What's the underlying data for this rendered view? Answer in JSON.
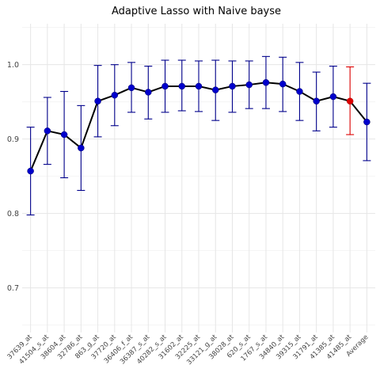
{
  "chart_data": {
    "type": "line",
    "title": "Adaptive Lasso with Naive bayse",
    "xlabel": "",
    "ylabel": "",
    "ylim": [
      0.64,
      1.055
    ],
    "yticks": [
      0.7,
      0.8,
      0.9,
      1.0
    ],
    "ytick_labels": [
      "0.7",
      "0.8",
      "0.9",
      "1.0"
    ],
    "grid": true,
    "legend": "none",
    "colors": {
      "line": "#000000",
      "point": "#0000cc",
      "errorbar": "#00008b",
      "highlight": "#dd0000",
      "grid": "#e6e6e6"
    },
    "categories": [
      "37639_at",
      "41504_s_at",
      "38604_at",
      "32786_at",
      "863_g_at",
      "37720_at",
      "36406_f_at",
      "36387_s_at",
      "40282_s_at",
      "31602_at",
      "32225_at",
      "33121_g_at",
      "38028_at",
      "620_s_at",
      "1767_s_at",
      "34840_at",
      "39315_at",
      "31791_at",
      "41385_at",
      "41485_at",
      "Average"
    ],
    "series": [
      {
        "values": [
          0.857,
          0.911,
          0.906,
          0.888,
          0.951,
          0.959,
          0.969,
          0.963,
          0.971,
          0.971,
          0.971,
          0.966,
          0.971,
          0.973,
          0.976,
          0.974,
          0.964,
          0.951,
          0.957,
          0.951,
          0.923
        ],
        "lower": [
          0.798,
          0.866,
          0.848,
          0.831,
          0.903,
          0.918,
          0.936,
          0.927,
          0.936,
          0.938,
          0.937,
          0.925,
          0.936,
          0.941,
          0.941,
          0.937,
          0.925,
          0.911,
          0.916,
          0.906,
          0.871
        ],
        "upper": [
          0.916,
          0.956,
          0.964,
          0.945,
          0.999,
          1.0,
          1.003,
          0.998,
          1.006,
          1.006,
          1.005,
          1.006,
          1.005,
          1.005,
          1.011,
          1.01,
          1.003,
          0.99,
          0.998,
          0.997,
          0.975
        ]
      }
    ],
    "highlight_index": 19
  }
}
